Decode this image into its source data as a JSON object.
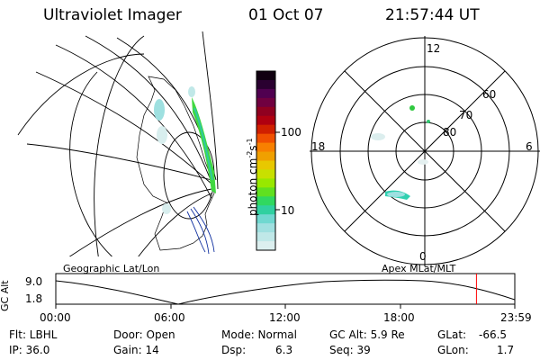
{
  "header": {
    "title": "Ultraviolet Imager",
    "date": "01 Oct 07",
    "time": "21:57:44 UT"
  },
  "colorbar": {
    "label": "photon cm",
    "exp1": "-2",
    "mid": "s",
    "exp2": "-1",
    "ticks": [
      "100",
      "10"
    ],
    "colors": [
      "#100010",
      "#2a0030",
      "#500050",
      "#700040",
      "#900020",
      "#b00010",
      "#d02000",
      "#f05000",
      "#f88000",
      "#f0a000",
      "#e8c800",
      "#c8e000",
      "#98e800",
      "#60e020",
      "#30d860",
      "#30d0a0",
      "#70d8d0",
      "#a0e0e0",
      "#c0e8e8",
      "#dcefef"
    ]
  },
  "polar_plot": {
    "lat_labels": [
      "60",
      "70",
      "80"
    ],
    "mlt_labels": [
      "12",
      "18",
      "6",
      "0"
    ]
  },
  "labels": {
    "geographic": "Geographic Lat/Lon",
    "apex": "Apex MLat/MLT"
  },
  "altitude_plot": {
    "axis_label": "GC Alt",
    "y_ticks": [
      "9.0",
      "1.8"
    ],
    "x_ticks": [
      "00:00",
      "06:00",
      "12:00",
      "18:00",
      "23:59"
    ],
    "current_time_fraction": 0.9165,
    "marker_color": "#ff0000"
  },
  "info": {
    "filter": "Flt: LBHL",
    "ip": "IP: 36.0",
    "door": "Door: Open",
    "gain": "Gain: 14",
    "mode": "Mode: Normal",
    "dsp_label": "Dsp:",
    "dsp_value": "6.3",
    "gc_alt": "GC Alt: 5.9 Re",
    "seq": "Seq: 39",
    "glat_label": "GLat:",
    "glat_value": "-66.5",
    "glon_label": "GLon:",
    "glon_value": "1.7"
  }
}
